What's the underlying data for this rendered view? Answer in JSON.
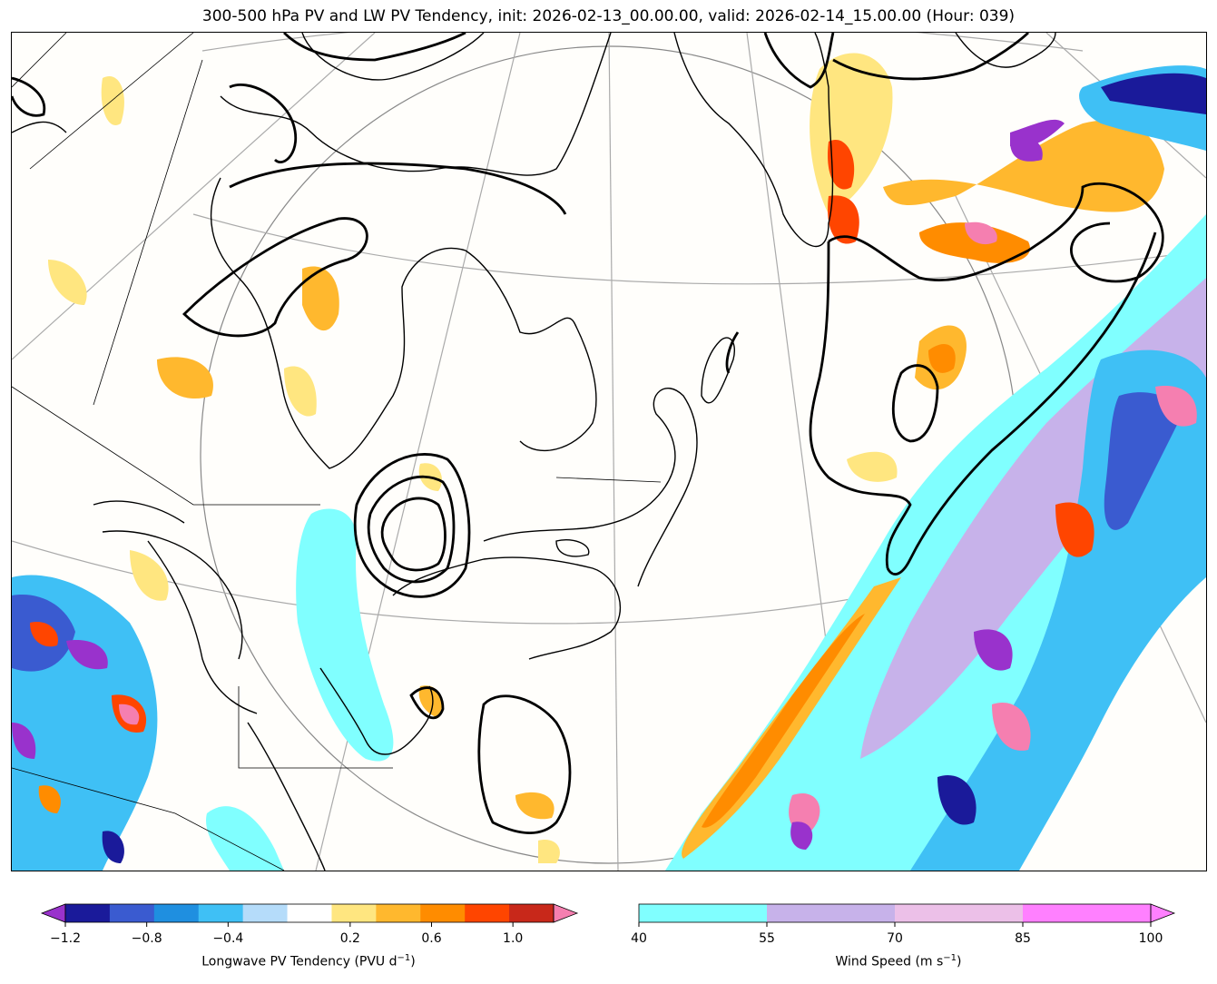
{
  "title": "300-500 hPa PV and LW PV Tendency, init: 2026-02-13_00.00.00, valid: 2026-02-14_15.00.00 (Hour: 039)",
  "map": {
    "projection": "polar stereographic (North America / North Atlantic)",
    "region": "Eastern Canada, Greenland, North Atlantic",
    "overlays": [
      "coastlines",
      "state/province borders",
      "lat/lon graticule",
      "PV contours (black)",
      "LW PV tendency (filled)",
      "wind speed (filled cyan/purple)"
    ]
  },
  "colorbar_left": {
    "label": "Longwave PV Tendency (PVU d",
    "label_sup": "−1",
    "label_end": ")",
    "ticks": [
      "−1.2",
      "−0.8",
      "−0.4",
      "0.2",
      "0.6",
      "1.0"
    ],
    "tick_values": [
      -1.2,
      -0.8,
      -0.4,
      0.2,
      0.6,
      1.0
    ],
    "bins": [
      -1.2,
      -1.0,
      -0.8,
      -0.6,
      -0.4,
      -0.2,
      0.2,
      0.4,
      0.6,
      0.8,
      1.0,
      1.2
    ],
    "colors": [
      "#1a1a9a",
      "#3a5bd0",
      "#1f8fe0",
      "#3fc0f5",
      "#b5dcfa",
      "#ffffff",
      "#ffe680",
      "#ffb82e",
      "#ff8c00",
      "#ff4500",
      "#c8281a"
    ],
    "under_color": "#9932cc",
    "over_color": "#f57fb0"
  },
  "colorbar_right": {
    "label": "Wind Speed (m s",
    "label_sup": "−1",
    "label_end": ")",
    "ticks": [
      "40",
      "55",
      "70",
      "85",
      "100"
    ],
    "colors": [
      "#80ffff",
      "#c7b2ea",
      "#ecc0e8",
      "#ff80ff"
    ],
    "over_color": "#ff80ff"
  }
}
